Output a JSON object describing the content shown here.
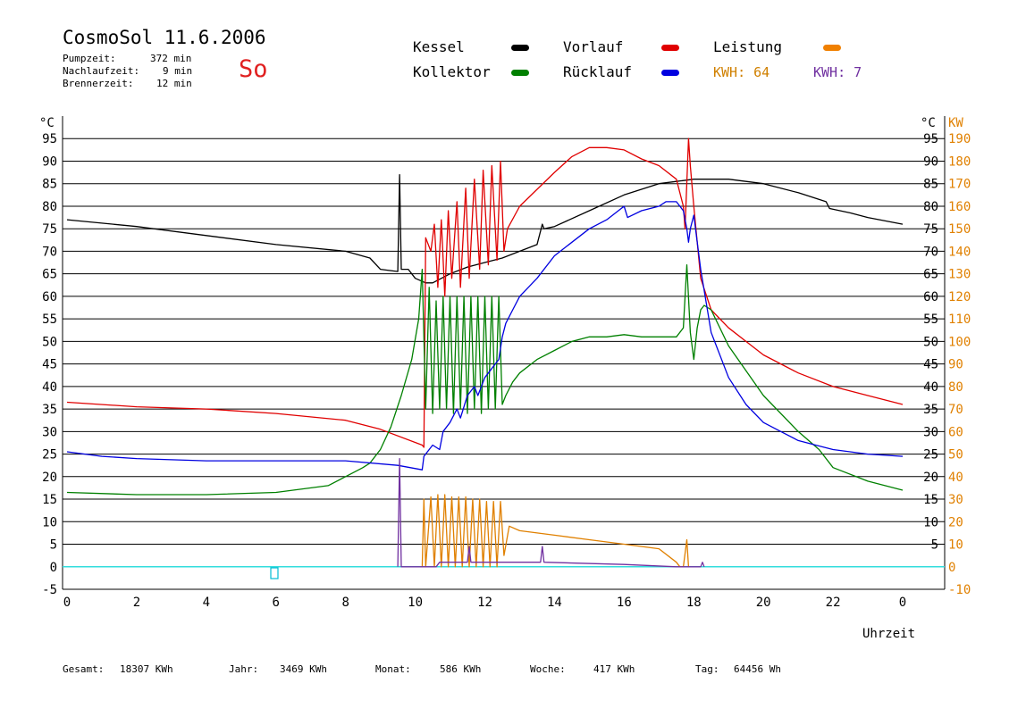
{
  "header": {
    "title": "CosmoSol 11.6.2006",
    "day": "So",
    "stats": [
      {
        "label": "Pumpzeit:",
        "value": "372 min"
      },
      {
        "label": "Nachlaufzeit:",
        "value": "9 min"
      },
      {
        "label": "Brennerzeit:",
        "value": "12 min"
      }
    ]
  },
  "legend": {
    "items": [
      {
        "label": "Kessel",
        "color": "#000000"
      },
      {
        "label": "Vorlauf",
        "color": "#e00000"
      },
      {
        "label": "Leistung",
        "color": "#f08000"
      },
      {
        "label": "Kollektor",
        "color": "#008000"
      },
      {
        "label": "Rücklauf",
        "color": "#0000e0"
      }
    ],
    "kwh_solar": "KWH: 64",
    "kwh_burner": "KWH: 7",
    "kwh_solar_color": "#d08000",
    "kwh_burner_color": "#7030a0"
  },
  "footer": [
    {
      "label": "Gesamt:",
      "value": "18307 KWh"
    },
    {
      "label": "Jahr:",
      "value": "3469 KWh"
    },
    {
      "label": "Monat:",
      "value": "586 KWh"
    },
    {
      "label": "Woche:",
      "value": "417 KWh"
    },
    {
      "label": "Tag:",
      "value": "64456 Wh"
    }
  ],
  "chart_data": {
    "type": "line",
    "xlabel": "Uhrzeit",
    "ylabel_left": "°C",
    "ylabel_right": "KW",
    "xlim": [
      0,
      24
    ],
    "ylim": [
      -5,
      100
    ],
    "ylim_right": [
      -10,
      200
    ],
    "x_ticks": [
      "0",
      "2",
      "4",
      "6",
      "8",
      "10",
      "12",
      "14",
      "16",
      "18",
      "20",
      "22",
      "0"
    ],
    "y_ticks_left": [
      "95",
      "90",
      "85",
      "80",
      "75",
      "70",
      "65",
      "60",
      "55",
      "50",
      "45",
      "40",
      "35",
      "30",
      "25",
      "20",
      "15",
      "10",
      "5",
      "0",
      "-5"
    ],
    "y_ticks_right_c": [
      "95",
      "90",
      "85",
      "80",
      "75",
      "70",
      "65",
      "60",
      "55",
      "50",
      "45",
      "40",
      "35",
      "30",
      "25",
      "20",
      "15",
      "10",
      "5"
    ],
    "y_ticks_right_kw": [
      "190",
      "180",
      "170",
      "160",
      "150",
      "140",
      "130",
      "120",
      "110",
      "100",
      "90",
      "80",
      "70",
      "60",
      "50",
      "40",
      "30",
      "20",
      "10",
      "0",
      "-10"
    ],
    "grid": true,
    "series": [
      {
        "name": "Kessel",
        "color": "#000000",
        "x": [
          0,
          2,
          4,
          6,
          8,
          8.7,
          9.0,
          9.5,
          9.55,
          9.6,
          9.65,
          9.8,
          10.0,
          10.3,
          10.5,
          11,
          11.5,
          12,
          12.5,
          13,
          13.5,
          13.65,
          13.7,
          14,
          15,
          16,
          17,
          17.5,
          18,
          19,
          20,
          21,
          21.8,
          21.9,
          22.5,
          23,
          24
        ],
        "y": [
          77,
          75.5,
          73.5,
          71.5,
          70,
          68.5,
          66,
          65.5,
          87,
          66,
          66,
          66,
          64,
          63,
          63,
          65,
          66.5,
          67.5,
          68.5,
          70,
          71.5,
          76,
          75,
          75.5,
          79,
          82.5,
          85,
          85.5,
          86,
          86,
          85,
          83,
          81,
          79.5,
          78.5,
          77.5,
          76
        ]
      },
      {
        "name": "Vorlauf",
        "color": "#e00000",
        "x": [
          0,
          2,
          4,
          6,
          8,
          9,
          10.2,
          10.25,
          10.3,
          10.45,
          10.55,
          10.65,
          10.75,
          10.85,
          10.95,
          11.05,
          11.2,
          11.3,
          11.45,
          11.55,
          11.7,
          11.85,
          11.95,
          12.1,
          12.2,
          12.35,
          12.45,
          12.55,
          12.65,
          13,
          14,
          14.5,
          15,
          15.5,
          16,
          16.5,
          17,
          17.5,
          17.7,
          17.75,
          17.85,
          17.9,
          18.0,
          18.2,
          18.5,
          19,
          20,
          21,
          22,
          23,
          24
        ],
        "y": [
          36.5,
          35.5,
          35,
          34,
          32.5,
          30.5,
          27,
          26.5,
          73,
          70,
          76,
          62,
          77,
          60,
          79,
          64,
          81,
          62,
          84,
          64,
          86,
          66,
          88,
          67,
          89,
          68,
          90,
          70,
          75,
          80,
          87.5,
          91,
          93,
          93,
          92.5,
          90.5,
          89,
          86,
          80,
          75,
          95,
          89,
          80,
          64,
          57,
          53,
          47,
          43,
          40,
          38,
          36
        ]
      },
      {
        "name": "Kollektor",
        "color": "#008000",
        "x": [
          0,
          2,
          4,
          6,
          7.5,
          8,
          8.5,
          8.7,
          9.0,
          9.3,
          9.6,
          9.9,
          10.1,
          10.2,
          10.3,
          10.4,
          10.5,
          10.6,
          10.7,
          10.8,
          10.9,
          11.0,
          11.1,
          11.2,
          11.3,
          11.4,
          11.5,
          11.6,
          11.7,
          11.8,
          11.9,
          12.0,
          12.1,
          12.2,
          12.3,
          12.4,
          12.5,
          12.6,
          12.8,
          13.0,
          13.5,
          14,
          14.5,
          15,
          15.5,
          16,
          16.5,
          17,
          17.5,
          17.7,
          17.8,
          17.9,
          18.0,
          18.1,
          18.2,
          18.3,
          18.5,
          19,
          20,
          21,
          21.3,
          21.6,
          22,
          23,
          24
        ],
        "y": [
          16.5,
          16,
          16,
          16.5,
          18,
          20,
          22,
          23,
          26,
          31,
          38,
          46,
          55,
          66,
          35,
          62,
          34,
          59,
          35,
          60,
          35,
          60,
          34,
          60,
          35,
          60,
          34,
          60,
          35,
          60,
          34,
          60,
          35,
          60,
          35,
          60,
          36,
          38,
          41,
          43,
          46,
          48,
          50,
          51,
          51,
          51.5,
          51,
          51,
          51,
          53,
          67,
          52,
          46,
          53,
          57,
          58,
          57,
          49,
          38,
          30,
          28,
          26,
          22,
          19,
          17
        ]
      },
      {
        "name": "Rücklauf",
        "color": "#0000e0",
        "x": [
          0,
          1,
          2,
          4,
          6,
          8,
          9.5,
          10.2,
          10.25,
          10.5,
          10.7,
          10.8,
          11.0,
          11.2,
          11.3,
          11.5,
          11.7,
          11.8,
          12.0,
          12.2,
          12.4,
          12.5,
          12.6,
          12.8,
          13,
          13.5,
          14,
          14.5,
          15,
          15.5,
          16,
          16.1,
          16.5,
          17,
          17.2,
          17.5,
          17.7,
          17.8,
          17.85,
          17.9,
          18.0,
          18.2,
          18.5,
          19,
          19.5,
          20,
          20.5,
          21,
          21.5,
          22,
          23,
          24
        ],
        "y": [
          25.5,
          24.5,
          24,
          23.5,
          23.5,
          23.5,
          22.5,
          21.5,
          24.5,
          27,
          26,
          30,
          32,
          35,
          33,
          38,
          40,
          38,
          42,
          44,
          46,
          51,
          54,
          57,
          60,
          64,
          69,
          72,
          75,
          77,
          80,
          77.5,
          79,
          80,
          81,
          81,
          79,
          75,
          72,
          75,
          78,
          66,
          52,
          42,
          36,
          32,
          30,
          28,
          27,
          26,
          25,
          24.5
        ]
      }
    ],
    "power_series": [
      {
        "name": "Leistung",
        "color": "#e08000",
        "x": [
          10.2,
          10.25,
          10.3,
          10.45,
          10.55,
          10.65,
          10.75,
          10.85,
          10.95,
          11.05,
          11.15,
          11.25,
          11.35,
          11.45,
          11.55,
          11.65,
          11.75,
          11.85,
          11.95,
          12.05,
          12.15,
          12.25,
          12.35,
          12.45,
          12.55,
          12.7,
          13,
          14,
          15,
          16,
          17,
          17.5,
          17.6,
          17.7,
          17.8,
          17.85
        ],
        "y": [
          0,
          30,
          0,
          31,
          0,
          32,
          0,
          32,
          0,
          31,
          0,
          31,
          0,
          31,
          0,
          30,
          0,
          30,
          0,
          29,
          0,
          29,
          0,
          29,
          5,
          18,
          16,
          14,
          12,
          10,
          8,
          2,
          0,
          0,
          12,
          0
        ]
      },
      {
        "name": "Brenner",
        "color": "#7030a0",
        "x": [
          9.5,
          9.55,
          9.6,
          10.6,
          10.7,
          11.5,
          11.55,
          11.6,
          13.6,
          13.65,
          13.7,
          16,
          17.5,
          18.2,
          18.25,
          18.3
        ],
        "y": [
          0,
          48,
          0,
          0,
          2,
          2,
          9,
          2,
          2,
          9,
          2,
          1,
          0,
          0,
          2,
          0
        ]
      }
    ]
  }
}
